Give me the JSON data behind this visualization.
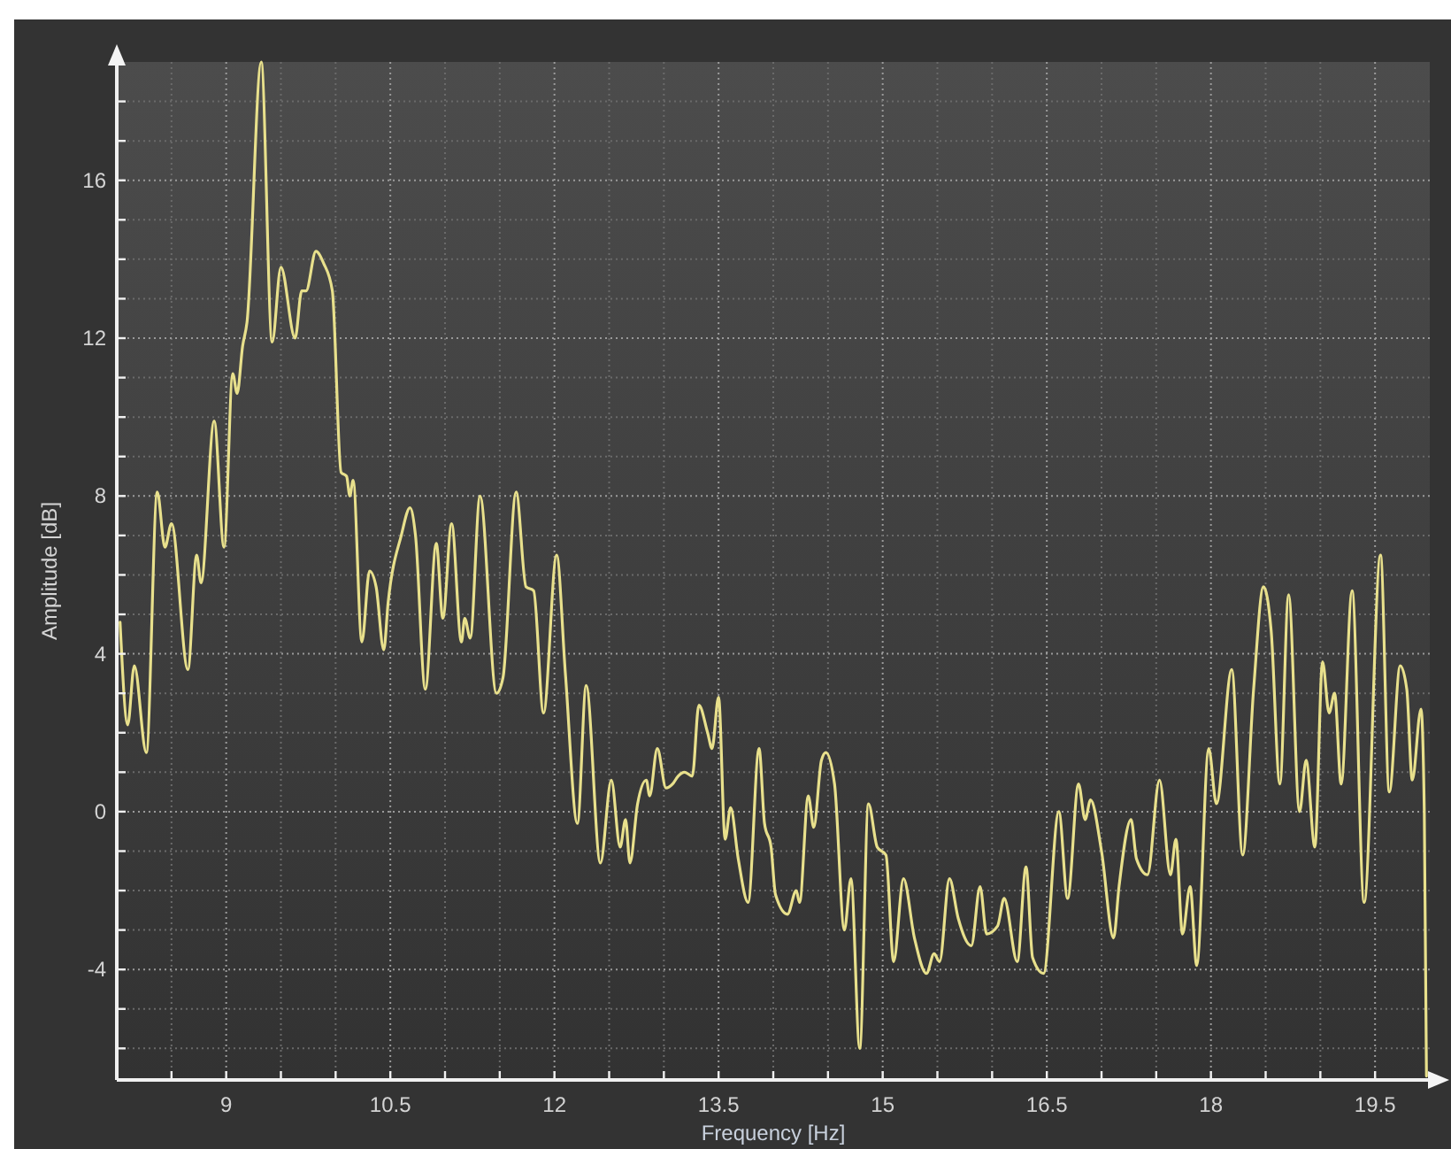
{
  "chart_data": {
    "type": "line",
    "xlabel": "Frequency [Hz]",
    "ylabel": "Amplitude [dB]",
    "xlim": [
      8,
      20
    ],
    "ylim": [
      -6.8,
      19
    ],
    "xticks": [
      {
        "value": 8.5,
        "label": null
      },
      9,
      {
        "value": 9.5,
        "label": null
      },
      {
        "value": 10,
        "label": null
      },
      10.5,
      {
        "value": 11,
        "label": null
      },
      {
        "value": 11.5,
        "label": null
      },
      12,
      {
        "value": 12.5,
        "label": null
      },
      {
        "value": 13,
        "label": null
      },
      13.5,
      {
        "value": 14,
        "label": null
      },
      {
        "value": 14.5,
        "label": null
      },
      15,
      {
        "value": 15.5,
        "label": null
      },
      {
        "value": 16,
        "label": null
      },
      16.5,
      {
        "value": 17,
        "label": null
      },
      {
        "value": 17.5,
        "label": null
      },
      18,
      {
        "value": 18.5,
        "label": null
      },
      {
        "value": 19,
        "label": null
      },
      19.5
    ],
    "yticks": [
      {
        "value": -6,
        "label": null
      },
      {
        "value": -5,
        "label": null
      },
      -4,
      {
        "value": -3,
        "label": null
      },
      {
        "value": -2,
        "label": null
      },
      {
        "value": -1,
        "label": null
      },
      0,
      {
        "value": 1,
        "label": null
      },
      {
        "value": 2,
        "label": null
      },
      {
        "value": 3,
        "label": null
      },
      4,
      {
        "value": 5,
        "label": null
      },
      {
        "value": 6,
        "label": null
      },
      {
        "value": 7,
        "label": null
      },
      8,
      {
        "value": 9,
        "label": null
      },
      {
        "value": 10,
        "label": null
      },
      {
        "value": 11,
        "label": null
      },
      12,
      {
        "value": 13,
        "label": null
      },
      {
        "value": 14,
        "label": null
      },
      {
        "value": 15,
        "label": null
      },
      16,
      {
        "value": 17,
        "label": null
      },
      {
        "value": 18,
        "label": null
      }
    ],
    "grid": true,
    "x": [
      8.03,
      8.1,
      8.16,
      8.27,
      8.37,
      8.44,
      8.5,
      8.65,
      8.73,
      8.77,
      8.89,
      8.98,
      9.06,
      9.1,
      9.15,
      9.19,
      9.32,
      9.42,
      9.5,
      9.63,
      9.69,
      9.73,
      9.82,
      9.89,
      9.97,
      10.05,
      10.1,
      10.13,
      10.16,
      10.24,
      10.31,
      10.37,
      10.44,
      10.48,
      10.6,
      10.68,
      10.73,
      10.82,
      10.92,
      10.98,
      11.06,
      11.15,
      11.18,
      11.23,
      11.32,
      11.47,
      11.53,
      11.65,
      11.74,
      11.81,
      11.9,
      12.02,
      12.1,
      12.21,
      12.29,
      12.42,
      12.52,
      12.6,
      12.65,
      12.69,
      12.76,
      12.84,
      12.87,
      12.94,
      13.02,
      13.08,
      13.13,
      13.19,
      13.26,
      13.32,
      13.4,
      13.44,
      13.5,
      13.56,
      13.61,
      13.68,
      13.77,
      13.87,
      13.92,
      13.98,
      14.02,
      14.13,
      14.21,
      14.24,
      14.32,
      14.37,
      14.44,
      14.48,
      14.56,
      14.65,
      14.71,
      14.79,
      14.87,
      14.95,
      15.03,
      15.1,
      15.19,
      15.29,
      15.4,
      15.47,
      15.52,
      15.61,
      15.69,
      15.81,
      15.89,
      15.95,
      16.05,
      16.11,
      16.23,
      16.31,
      16.37,
      16.47,
      16.61,
      16.69,
      16.79,
      16.85,
      16.9,
      17.0,
      17.11,
      17.16,
      17.27,
      17.32,
      17.42,
      17.53,
      17.63,
      17.68,
      17.74,
      17.81,
      17.87,
      17.98,
      18.05,
      18.19,
      18.29,
      18.39,
      18.48,
      18.55,
      18.63,
      18.71,
      18.81,
      18.87,
      18.95,
      19.02,
      19.08,
      19.13,
      19.19,
      19.29,
      19.4,
      19.55,
      19.63,
      19.73,
      19.79,
      19.84,
      19.92,
      19.95,
      19.97
    ],
    "series": [
      {
        "color": "#e8e08c",
        "values": [
          4.8,
          2.2,
          3.7,
          1.5,
          8.1,
          6.7,
          7.3,
          3.6,
          6.5,
          5.8,
          9.9,
          6.7,
          11.1,
          10.6,
          11.8,
          12.4,
          19.0,
          11.9,
          13.8,
          12.0,
          13.2,
          13.2,
          14.2,
          13.9,
          13.2,
          8.6,
          8.5,
          8.0,
          8.4,
          4.3,
          6.1,
          5.7,
          4.1,
          5.3,
          7.0,
          7.7,
          7.0,
          3.1,
          6.8,
          4.9,
          7.3,
          4.3,
          4.9,
          4.4,
          8.0,
          3.0,
          3.4,
          8.1,
          5.7,
          5.6,
          2.5,
          6.5,
          3.5,
          -0.3,
          3.2,
          -1.3,
          0.8,
          -0.9,
          -0.2,
          -1.3,
          0.2,
          0.8,
          0.4,
          1.6,
          0.6,
          0.7,
          0.9,
          1.0,
          0.9,
          2.7,
          2.0,
          1.6,
          2.9,
          -0.7,
          0.1,
          -1.2,
          -2.3,
          1.6,
          -0.3,
          -0.9,
          -2.1,
          -2.6,
          -2.0,
          -2.3,
          0.4,
          -0.4,
          1.3,
          1.5,
          0.7,
          -3.0,
          -1.7,
          -6.0,
          0.2,
          -0.9,
          -1.1,
          -3.8,
          -1.7,
          -3.2,
          -4.1,
          -3.6,
          -3.8,
          -1.7,
          -2.7,
          -3.4,
          -1.9,
          -3.1,
          -2.9,
          -2.2,
          -3.8,
          -1.4,
          -3.7,
          -4.1,
          0.0,
          -2.2,
          0.7,
          -0.2,
          0.3,
          -1.0,
          -3.2,
          -1.9,
          -0.2,
          -1.2,
          -1.6,
          0.8,
          -1.6,
          -0.7,
          -3.1,
          -1.9,
          -3.9,
          1.6,
          0.2,
          3.6,
          -1.1,
          3.1,
          5.7,
          4.6,
          0.7,
          5.5,
          0.0,
          1.3,
          -0.9,
          3.8,
          2.5,
          3.0,
          0.7,
          5.6,
          -2.3,
          6.5,
          0.5,
          3.7,
          3.1,
          0.8,
          2.6,
          0.0,
          -6.7
        ]
      }
    ]
  }
}
